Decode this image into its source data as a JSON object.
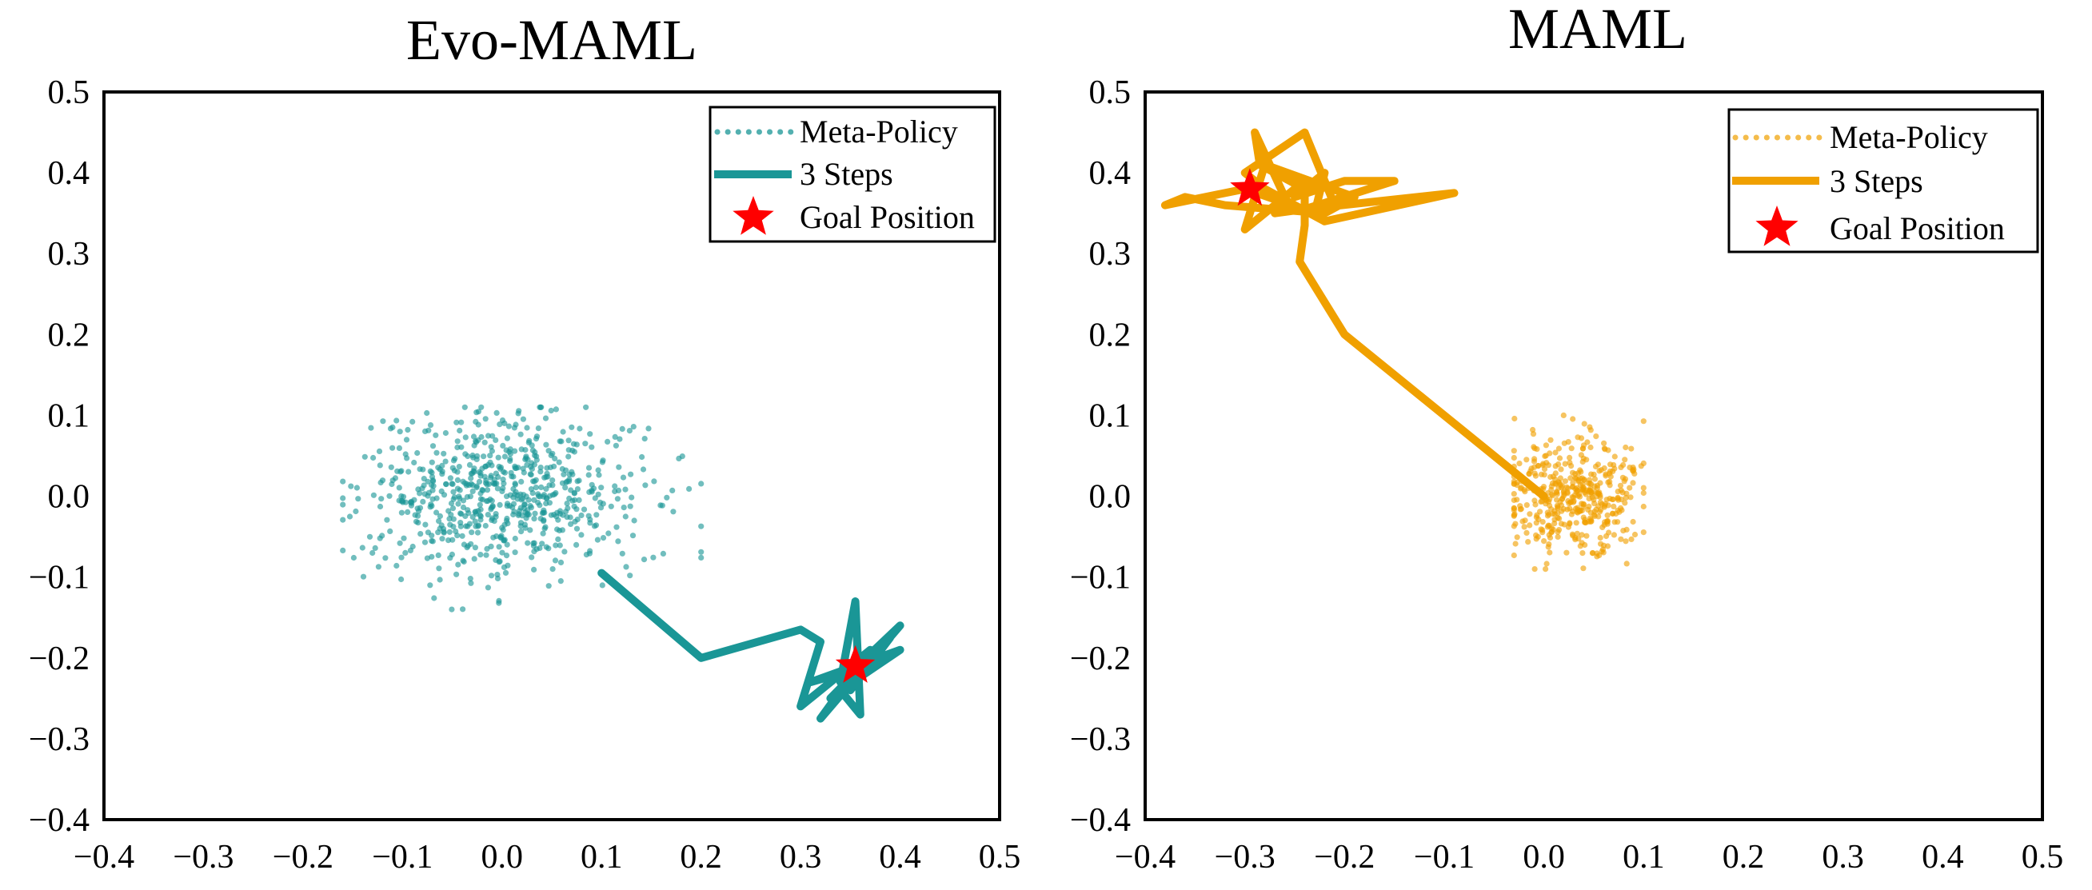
{
  "chart_data": [
    {
      "type": "scatter",
      "title": "Evo-MAML",
      "xlabel": "",
      "ylabel": "",
      "xlim": [
        -0.4,
        0.5
      ],
      "ylim": [
        -0.4,
        0.5
      ],
      "xticks": [
        -0.4,
        -0.3,
        -0.2,
        -0.1,
        0.0,
        0.1,
        0.2,
        0.3,
        0.4,
        0.5
      ],
      "yticks": [
        -0.4,
        -0.3,
        -0.2,
        -0.1,
        0.0,
        0.1,
        0.2,
        0.3,
        0.4,
        0.5
      ],
      "xtick_labels": [
        "−0.4",
        "−0.3",
        "−0.2",
        "−0.1",
        "0.0",
        "0.1",
        "0.2",
        "0.3",
        "0.4",
        "0.5"
      ],
      "ytick_labels": [
        "−0.4",
        "−0.3",
        "−0.2",
        "−0.1",
        "0.0",
        "0.1",
        "0.2",
        "0.3",
        "0.4",
        "0.5"
      ],
      "grid": false,
      "legend_position": "top-right",
      "color": "#1a9696",
      "series": [
        {
          "name": "Meta-Policy",
          "style": "dotted",
          "cloud": {
            "center": [
              0.0,
              0.0
            ],
            "spread": [
              0.07,
              0.05
            ],
            "range_x": [
              -0.16,
              0.2
            ],
            "range_y": [
              -0.14,
              0.11
            ],
            "count": 700,
            "seed": 7
          }
        },
        {
          "name": "3 Steps",
          "style": "solid",
          "path": [
            [
              0.1,
              -0.095
            ],
            [
              0.2,
              -0.2
            ],
            [
              0.3,
              -0.165
            ],
            [
              0.32,
              -0.18
            ],
            [
              0.3,
              -0.26
            ],
            [
              0.37,
              -0.19
            ],
            [
              0.32,
              -0.275
            ],
            [
              0.4,
              -0.16
            ],
            [
              0.34,
              -0.23
            ],
            [
              0.355,
              -0.13
            ],
            [
              0.36,
              -0.27
            ],
            [
              0.34,
              -0.24
            ],
            [
              0.4,
              -0.19
            ],
            [
              0.31,
              -0.23
            ],
            [
              0.38,
              -0.205
            ],
            [
              0.33,
              -0.25
            ],
            [
              0.39,
              -0.175
            ],
            [
              0.35,
              -0.24
            ],
            [
              0.37,
              -0.205
            ]
          ]
        },
        {
          "name": "Goal Position",
          "style": "star",
          "x": 0.355,
          "y": -0.21,
          "color": "#ff0000"
        }
      ]
    },
    {
      "type": "scatter",
      "title": "MAML",
      "xlabel": "",
      "ylabel": "",
      "xlim": [
        -0.4,
        0.5
      ],
      "ylim": [
        -0.4,
        0.5
      ],
      "xticks": [
        -0.4,
        -0.3,
        -0.2,
        -0.1,
        0.0,
        0.1,
        0.2,
        0.3,
        0.4,
        0.5
      ],
      "yticks": [
        -0.4,
        -0.3,
        -0.2,
        -0.1,
        0.0,
        0.1,
        0.2,
        0.3,
        0.4,
        0.5
      ],
      "xtick_labels": [
        "−0.4",
        "−0.3",
        "−0.2",
        "−0.1",
        "0.0",
        "0.1",
        "0.2",
        "0.3",
        "0.4",
        "0.5"
      ],
      "ytick_labels": [
        "−0.4",
        "−0.3",
        "−0.2",
        "−0.1",
        "0.0",
        "0.1",
        "0.2",
        "0.3",
        "0.4",
        "0.5"
      ],
      "grid": false,
      "legend_position": "top-right",
      "color": "#f0a000",
      "series": [
        {
          "name": "Meta-Policy",
          "style": "dotted",
          "cloud": {
            "center": [
              0.03,
              0.0
            ],
            "spread": [
              0.035,
              0.035
            ],
            "range_x": [
              -0.03,
              0.1
            ],
            "range_y": [
              -0.09,
              0.1
            ],
            "count": 450,
            "seed": 13
          }
        },
        {
          "name": "3 Steps",
          "style": "solid",
          "path": [
            [
              0.0,
              0.0
            ],
            [
              -0.2,
              0.2
            ],
            [
              -0.245,
              0.29
            ],
            [
              -0.24,
              0.335
            ],
            [
              -0.24,
              0.38
            ],
            [
              -0.285,
              0.41
            ],
            [
              -0.29,
              0.45
            ],
            [
              -0.26,
              0.37
            ],
            [
              -0.24,
              0.39
            ],
            [
              -0.3,
              0.33
            ],
            [
              -0.28,
              0.41
            ],
            [
              -0.19,
              0.37
            ],
            [
              -0.22,
              0.35
            ],
            [
              -0.32,
              0.36
            ],
            [
              -0.36,
              0.37
            ],
            [
              -0.38,
              0.36
            ],
            [
              -0.3,
              0.38
            ],
            [
              -0.23,
              0.35
            ],
            [
              -0.22,
              0.4
            ],
            [
              -0.25,
              0.37
            ],
            [
              -0.2,
              0.39
            ],
            [
              -0.15,
              0.39
            ],
            [
              -0.24,
              0.355
            ],
            [
              -0.09,
              0.375
            ],
            [
              -0.22,
              0.34
            ],
            [
              -0.28,
              0.38
            ],
            [
              -0.3,
              0.4
            ],
            [
              -0.24,
              0.45
            ],
            [
              -0.21,
              0.36
            ],
            [
              -0.27,
              0.35
            ]
          ]
        },
        {
          "name": "Goal Position",
          "style": "star",
          "x": -0.295,
          "y": 0.38,
          "color": "#ff0000"
        }
      ]
    }
  ]
}
